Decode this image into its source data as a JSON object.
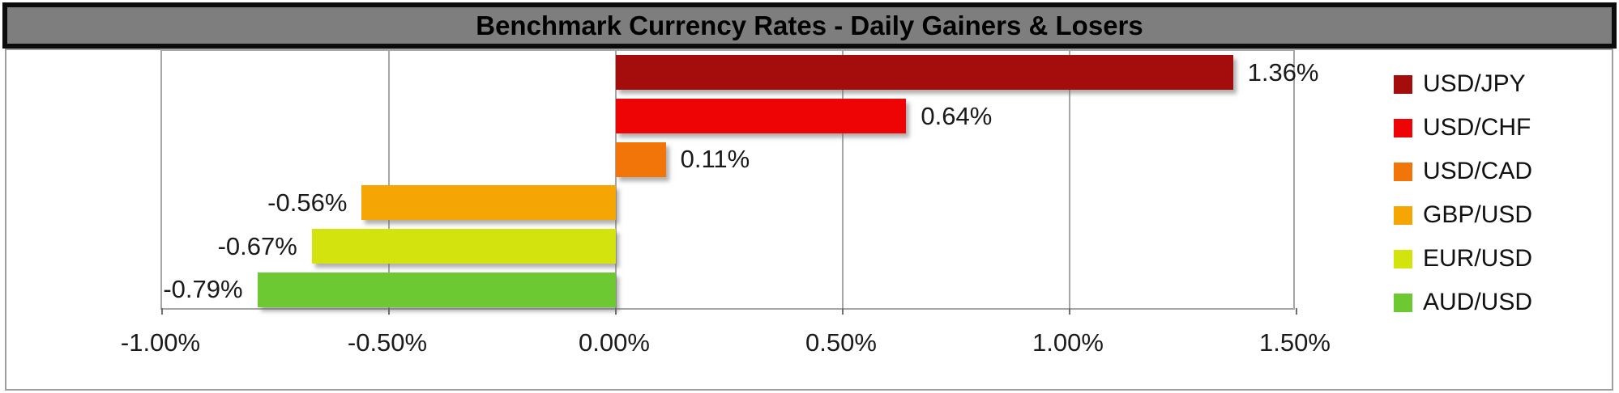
{
  "title": "Benchmark Currency Rates - Daily Gainers & Losers",
  "colors": {
    "title_bg": "#7e7e7e",
    "title_border": "#0c0c0c",
    "title_text": "#000000",
    "chart_frame": "#9e9e9e",
    "gridline": "#a6a6a6",
    "tick": "#6e6e6e",
    "label_text": "#1a1a1a",
    "background": "#ffffff"
  },
  "chart_data": {
    "type": "bar",
    "orientation": "horizontal",
    "title": "Benchmark Currency Rates - Daily Gainers & Losers",
    "categories": [
      "USD/JPY",
      "USD/CHF",
      "USD/CAD",
      "GBP/USD",
      "EUR/USD",
      "AUD/USD"
    ],
    "values": [
      1.36,
      0.64,
      0.11,
      -0.56,
      -0.67,
      -0.79
    ],
    "data_labels": [
      "1.36%",
      "0.64%",
      "0.11%",
      "-0.56%",
      "-0.67%",
      "-0.79%"
    ],
    "bar_colors": [
      "#A50D0D",
      "#EE0404",
      "#F2750A",
      "#F6A604",
      "#D2E30D",
      "#6CC931"
    ],
    "x_ticks": [
      "-1.00%",
      "-0.50%",
      "0.00%",
      "0.50%",
      "1.00%",
      "1.50%"
    ],
    "x_tick_values": [
      -1.0,
      -0.5,
      0.0,
      0.5,
      1.0,
      1.5
    ],
    "xlim": [
      -1.0,
      1.5
    ],
    "xlabel": "",
    "ylabel": "",
    "grid": true,
    "legend_position": "right",
    "legend": [
      "USD/JPY",
      "USD/CHF",
      "USD/CAD",
      "GBP/USD",
      "EUR/USD",
      "AUD/USD"
    ]
  }
}
